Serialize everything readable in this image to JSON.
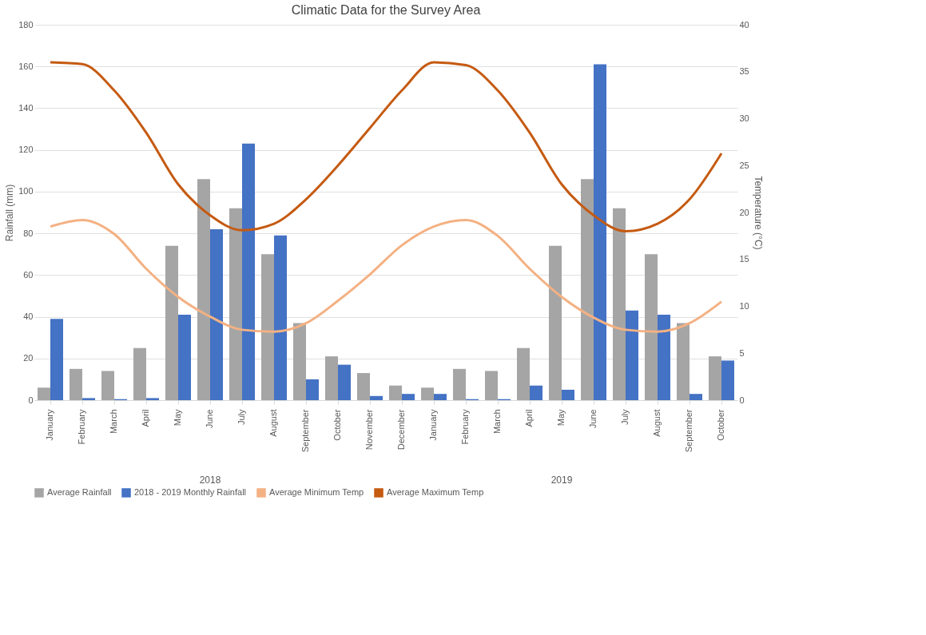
{
  "chart_data": {
    "type": "bar",
    "title": "Climatic Data for the Survey Area",
    "categories": [
      "January",
      "February",
      "March",
      "April",
      "May",
      "June",
      "July",
      "August",
      "September",
      "October",
      "November",
      "December",
      "January",
      "February",
      "March",
      "April",
      "May",
      "June",
      "July",
      "August",
      "September",
      "October"
    ],
    "series": [
      {
        "name": "Average Rainfall",
        "color": "#a5a5a5",
        "values": [
          6,
          15,
          14,
          25,
          74,
          106,
          92,
          70,
          37,
          21,
          13,
          7,
          6,
          15,
          14,
          25,
          74,
          106,
          92,
          70,
          37,
          21
        ]
      },
      {
        "name": "2018 - 2019 Monthly Rainfall",
        "color": "#4472c4",
        "values": [
          39,
          1,
          0.5,
          1,
          41,
          82,
          123,
          79,
          10,
          17,
          2,
          3,
          3,
          0.5,
          0.5,
          7,
          5,
          161,
          43,
          41,
          3,
          19
        ]
      },
      {
        "name": "Average Minimum Temp",
        "color": "#f4b183",
        "type": "line",
        "axis": "y2",
        "values": [
          18.5,
          19.2,
          17.7,
          14,
          11,
          8.9,
          7.5,
          7.3,
          8.2,
          10.6,
          13.4,
          16.5,
          18.5,
          19.2,
          17.5,
          14,
          11,
          8.8,
          7.5,
          7.3,
          8.2,
          10.5
        ]
      },
      {
        "name": "Average Maximum Temp",
        "color": "#c55a11",
        "type": "line",
        "axis": "y2",
        "values": [
          36,
          35.8,
          33,
          28.5,
          23,
          19.7,
          18.1,
          18.8,
          21.4,
          25,
          29,
          33,
          36,
          35.7,
          33,
          28.5,
          23,
          19.7,
          18,
          18.8,
          21.4,
          26.3
        ]
      }
    ],
    "ylabel": "Rainfall (mm)",
    "y2label": "Temperature (°C)",
    "ylim": [
      0,
      180
    ],
    "yticks": [
      0,
      20,
      40,
      60,
      80,
      100,
      120,
      140,
      160,
      180
    ],
    "y2lim": [
      0,
      40
    ],
    "y2ticks": [
      0,
      5,
      10,
      15,
      20,
      25,
      30,
      35,
      40
    ],
    "annotations": [
      "2018",
      "2019"
    ],
    "grid": "y",
    "legend": "bottom"
  }
}
